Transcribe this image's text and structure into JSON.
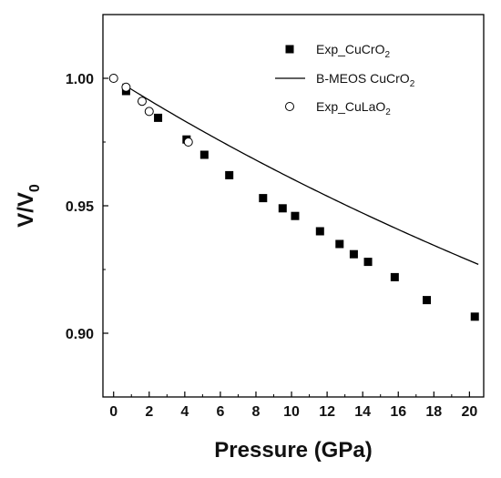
{
  "chart_data": {
    "type": "scatter",
    "xlabel": "Pressure (GPa)",
    "ylabel": {
      "base": "V/V",
      "sub": "0"
    },
    "xlim": [
      -0.6,
      20.8
    ],
    "ylim": [
      0.875,
      1.025
    ],
    "x_ticks": [
      0,
      2,
      4,
      6,
      8,
      10,
      12,
      14,
      16,
      18,
      20
    ],
    "x_tick_labels": [
      "0",
      "2",
      "4",
      "6",
      "8",
      "10",
      "12",
      "14",
      "16",
      "18",
      "20"
    ],
    "y_ticks": [
      0.9,
      0.95,
      1.0
    ],
    "y_tick_labels": [
      "0.90",
      "0.95",
      "1.00"
    ],
    "grid": false,
    "legend_position": "top-right",
    "series": [
      {
        "name": {
          "base": "Exp_CuCrO",
          "sub": "2"
        },
        "style": "filled-square",
        "color": "#000000",
        "x": [
          0.7,
          2.5,
          4.1,
          5.1,
          6.5,
          8.4,
          9.5,
          10.2,
          11.6,
          12.7,
          13.5,
          14.3,
          15.8,
          17.6,
          20.3
        ],
        "y": [
          0.995,
          0.9845,
          0.976,
          0.97,
          0.962,
          0.953,
          0.949,
          0.946,
          0.94,
          0.935,
          0.931,
          0.928,
          0.922,
          0.913,
          0.9065
        ]
      },
      {
        "name": {
          "base": "B-MEOS CuCrO",
          "sub": "2"
        },
        "style": "line",
        "color": "#000000",
        "model": {
          "V0": 1.0,
          "B0": 228,
          "B0p": 4.5
        },
        "x_range": [
          0.5,
          20.5
        ]
      },
      {
        "name": {
          "base": "Exp_CuLaO",
          "sub": "2"
        },
        "style": "open-circle",
        "color": "#000000",
        "x": [
          0.0,
          0.7,
          1.6,
          2.0,
          4.2
        ],
        "y": [
          1.0,
          0.9965,
          0.991,
          0.987,
          0.975
        ]
      }
    ]
  }
}
